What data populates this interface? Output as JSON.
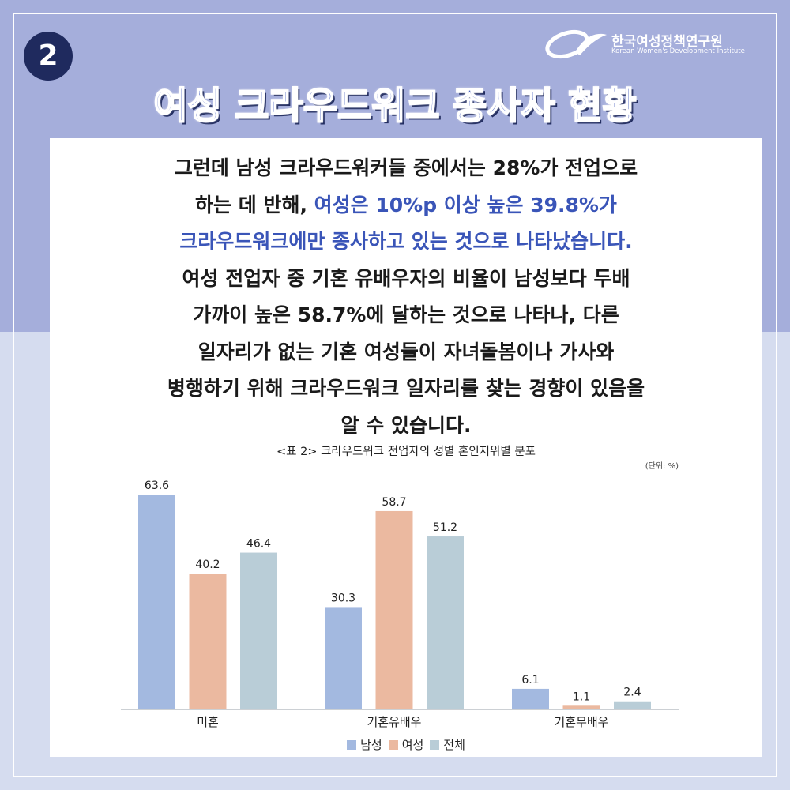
{
  "badge": "2",
  "logo": {
    "name": "한국여성정책연구원",
    "sub": "Korean Women's Development Institute"
  },
  "title": "여성 크라우드워크 종사자 현황",
  "body_lines": [
    [
      {
        "t": "그런데 남성 크라우드워커들 중에서는 28%가 전업으로",
        "hl": false
      }
    ],
    [
      {
        "t": "하는 데 반해, ",
        "hl": false
      },
      {
        "t": "여성은 10%p 이상 높은 39.8%가",
        "hl": true
      }
    ],
    [
      {
        "t": "크라우드워크에만 종사하고 있는 것으로 나타났습니다.",
        "hl": true
      }
    ],
    [
      {
        "t": "여성 전업자 중 기혼 유배우자의 비율이 남성보다 두배",
        "hl": false
      }
    ],
    [
      {
        "t": "가까이 높은 58.7%에 달하는 것으로 나타나, 다른",
        "hl": false
      }
    ],
    [
      {
        "t": "일자리가 없는 기혼 여성들이 자녀돌봄이나 가사와",
        "hl": false
      }
    ],
    [
      {
        "t": "병행하기 위해 크라우드워크 일자리를 찾는 경향이 있음을",
        "hl": false
      }
    ],
    [
      {
        "t": "알 수 있습니다.",
        "hl": false
      }
    ]
  ],
  "chart_data": {
    "type": "bar",
    "title": "<표 2> 크라우드워크 전업자의 성별 혼인지위별 분포",
    "unit": "(단위: %)",
    "categories": [
      "미혼",
      "기혼유배우",
      "기혼무배우"
    ],
    "series": [
      {
        "name": "남성",
        "values": [
          63.6,
          30.3,
          6.1
        ],
        "color": "#a3b9e0"
      },
      {
        "name": "여성",
        "values": [
          40.2,
          58.7,
          1.1
        ],
        "color": "#ebb9a0"
      },
      {
        "name": "전체",
        "values": [
          46.4,
          51.2,
          2.4
        ],
        "color": "#b9cdd7"
      }
    ],
    "ylim": [
      0,
      63.6
    ],
    "grid": false,
    "legend": "bottom"
  }
}
